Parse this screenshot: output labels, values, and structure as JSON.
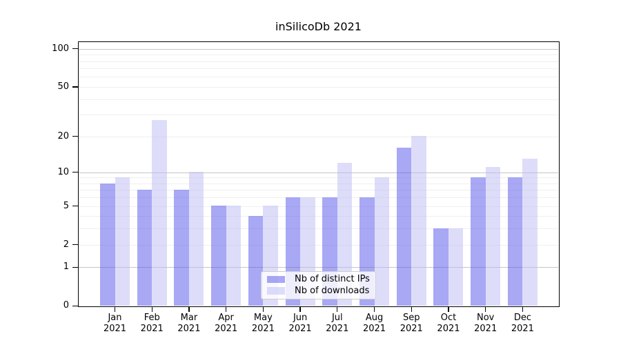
{
  "title": "inSilicoDb 2021",
  "chart_data": {
    "type": "bar",
    "title": "inSilicoDb 2021",
    "x_tick_labels": [
      [
        "Jan",
        "2021"
      ],
      [
        "Feb",
        "2021"
      ],
      [
        "Mar",
        "2021"
      ],
      [
        "Apr",
        "2021"
      ],
      [
        "May",
        "2021"
      ],
      [
        "Jun",
        "2021"
      ],
      [
        "Jul",
        "2021"
      ],
      [
        "Aug",
        "2021"
      ],
      [
        "Sep",
        "2021"
      ],
      [
        "Oct",
        "2021"
      ],
      [
        "Nov",
        "2021"
      ],
      [
        "Dec",
        "2021"
      ]
    ],
    "categories": [
      "Jan",
      "Feb",
      "Mar",
      "Apr",
      "May",
      "Jun",
      "Jul",
      "Aug",
      "Sep",
      "Oct",
      "Nov",
      "Dec"
    ],
    "series": [
      {
        "name": "Nb of distinct IPs",
        "color": "rgba(81,81,235,0.5)",
        "values": [
          8,
          7,
          7,
          5,
          4,
          6,
          6,
          6,
          16,
          3,
          9,
          9
        ]
      },
      {
        "name": "Nb of downloads",
        "color": "rgba(187,187,245,0.5)",
        "values": [
          9,
          27,
          10,
          5,
          5,
          6,
          12,
          9,
          20,
          3,
          11,
          13
        ]
      }
    ],
    "y_ticks": [
      0,
      1,
      2,
      5,
      10,
      20,
      50,
      100
    ],
    "y_scale": "log1p",
    "ylim": [
      0,
      114
    ],
    "xlim": [
      -1,
      12
    ],
    "grid": true,
    "legend_position": "lower center",
    "colors": {
      "bar_distinct_ips_rendered": "#a8a8f5",
      "bar_downloads_rendered": "#dddcfa",
      "major_grid": "#c6c6c6",
      "minor_grid": "#efefef",
      "axis": "#000000",
      "background": "#ffffff"
    }
  }
}
